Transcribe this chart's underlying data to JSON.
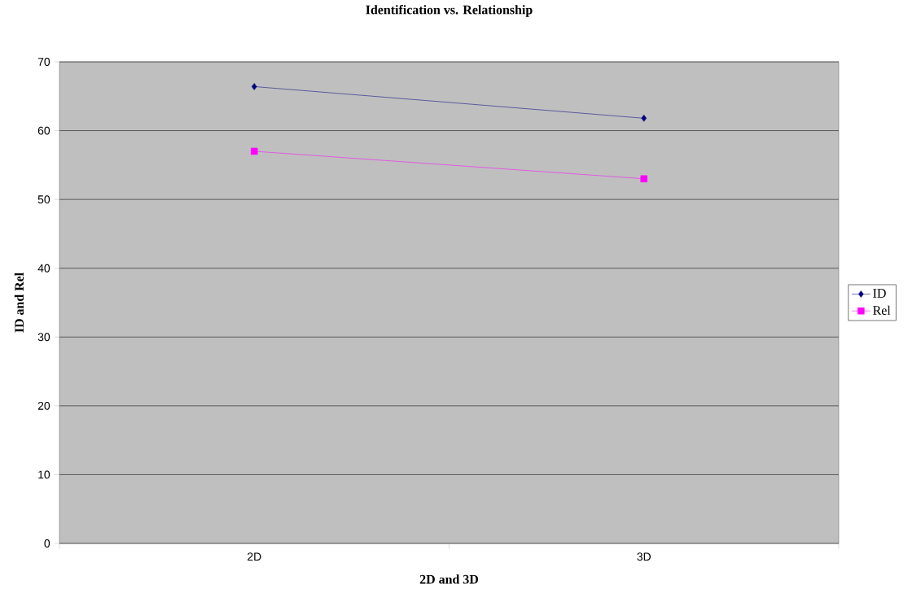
{
  "chart_data": {
    "type": "line",
    "title": "Identification vs. Relationship",
    "xlabel": "2D and 3D",
    "ylabel": "ID and Rel",
    "categories": [
      "2D",
      "3D"
    ],
    "series": [
      {
        "name": "ID",
        "color": "#000080",
        "values": [
          66.4,
          61.8
        ],
        "marker": "diamond"
      },
      {
        "name": "Rel",
        "color": "#ff00ff",
        "values": [
          57.0,
          53.0
        ],
        "marker": "square"
      }
    ],
    "ylim": [
      0,
      70
    ],
    "yticks": [
      0,
      10,
      20,
      30,
      40,
      50,
      60,
      70
    ],
    "grid": "y",
    "legend": "right",
    "line_style": "solid"
  }
}
